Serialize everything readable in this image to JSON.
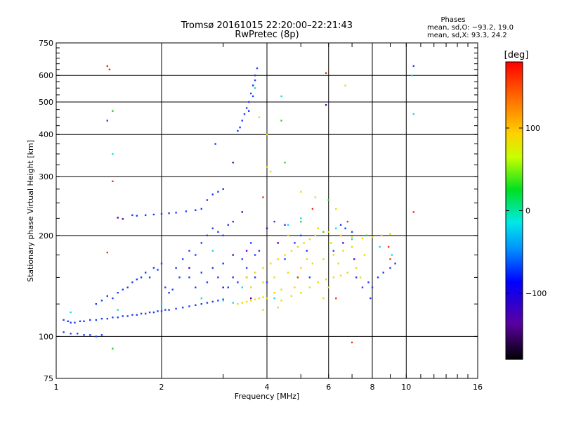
{
  "chart_data": {
    "type": "scatter",
    "title": "Tromsø 20161015 22:20:00–22:21:43",
    "subtitle": "RwPretec (8p)",
    "xlabel": "Frequency [MHz]",
    "ylabel": "Stationary phase Virtual Height [km]",
    "x_scale": "log",
    "y_scale": "log",
    "xlim": [
      1,
      16
    ],
    "ylim": [
      75,
      750
    ],
    "x_ticks": [
      1,
      2,
      4,
      6,
      8,
      10,
      16
    ],
    "x_tick_labels": [
      "1",
      "2",
      "4",
      "6",
      "8",
      "10",
      "16"
    ],
    "y_ticks": [
      75,
      100,
      200,
      300,
      400,
      500,
      600,
      750
    ],
    "y_tick_labels": [
      "75",
      "100",
      "200",
      "300",
      "400",
      "500",
      "600",
      "750"
    ],
    "grid": true,
    "stats": {
      "heading": "Phases",
      "line_o": "mean, sd,O: −93.2, 19.0",
      "line_x": "mean, sd,X:  93.3, 24.2"
    },
    "colorbar": {
      "label": "[deg]",
      "range": [
        -180,
        180
      ],
      "ticks": [
        100,
        0,
        -100
      ],
      "tick_labels": [
        "100",
        "0",
        "−100"
      ]
    },
    "series": [
      {
        "phase_deg": -93.2,
        "color": "#1b3cff",
        "points": [
          [
            1.05,
            112
          ],
          [
            1.08,
            111
          ],
          [
            1.1,
            110
          ],
          [
            1.13,
            110
          ],
          [
            1.17,
            111
          ],
          [
            1.2,
            111
          ],
          [
            1.25,
            112
          ],
          [
            1.3,
            112
          ],
          [
            1.35,
            113
          ],
          [
            1.4,
            113
          ],
          [
            1.45,
            114
          ],
          [
            1.5,
            114
          ],
          [
            1.55,
            115
          ],
          [
            1.6,
            115
          ],
          [
            1.65,
            116
          ],
          [
            1.7,
            116
          ],
          [
            1.75,
            117
          ],
          [
            1.8,
            117
          ],
          [
            1.85,
            118
          ],
          [
            1.9,
            118
          ],
          [
            1.95,
            119
          ],
          [
            2.0,
            119
          ],
          [
            2.05,
            120
          ],
          [
            2.1,
            120
          ],
          [
            2.2,
            121
          ],
          [
            2.3,
            122
          ],
          [
            2.4,
            123
          ],
          [
            2.5,
            124
          ],
          [
            2.6,
            125
          ],
          [
            2.7,
            126
          ],
          [
            2.8,
            127
          ],
          [
            2.9,
            128
          ],
          [
            3.0,
            129
          ],
          [
            1.05,
            103
          ],
          [
            1.1,
            102
          ],
          [
            1.15,
            102
          ],
          [
            1.2,
            101
          ],
          [
            1.25,
            101
          ],
          [
            1.3,
            100
          ],
          [
            1.35,
            101
          ],
          [
            1.3,
            125
          ],
          [
            1.35,
            128
          ],
          [
            1.4,
            132
          ],
          [
            1.45,
            130
          ],
          [
            1.5,
            135
          ],
          [
            1.55,
            138
          ],
          [
            1.6,
            140
          ],
          [
            1.65,
            145
          ],
          [
            1.7,
            148
          ],
          [
            1.75,
            150
          ],
          [
            1.8,
            155
          ],
          [
            1.85,
            150
          ],
          [
            1.9,
            160
          ],
          [
            1.95,
            158
          ],
          [
            2.0,
            165
          ],
          [
            2.05,
            140
          ],
          [
            2.1,
            135
          ],
          [
            2.15,
            138
          ],
          [
            2.2,
            160
          ],
          [
            2.25,
            150
          ],
          [
            2.3,
            170
          ],
          [
            2.4,
            180
          ],
          [
            2.5,
            175
          ],
          [
            2.6,
            190
          ],
          [
            2.7,
            200
          ],
          [
            2.8,
            210
          ],
          [
            2.9,
            205
          ],
          [
            3.0,
            200
          ],
          [
            3.1,
            215
          ],
          [
            3.2,
            220
          ],
          [
            2.4,
            150
          ],
          [
            2.6,
            155
          ],
          [
            2.8,
            160
          ],
          [
            3.0,
            165
          ],
          [
            3.2,
            150
          ],
          [
            3.4,
            170
          ],
          [
            3.5,
            160
          ],
          [
            3.6,
            190
          ],
          [
            3.7,
            175
          ],
          [
            3.8,
            180
          ],
          [
            2.5,
            140
          ],
          [
            2.7,
            145
          ],
          [
            2.9,
            150
          ],
          [
            3.1,
            140
          ],
          [
            3.3,
            145
          ],
          [
            3.5,
            150
          ],
          [
            3.3,
            410
          ],
          [
            3.35,
            420
          ],
          [
            3.4,
            440
          ],
          [
            3.45,
            460
          ],
          [
            3.5,
            480
          ],
          [
            3.55,
            500
          ],
          [
            3.6,
            530
          ],
          [
            3.65,
            560
          ],
          [
            3.7,
            600
          ],
          [
            3.75,
            630
          ],
          [
            3.55,
            470
          ],
          [
            3.65,
            520
          ],
          [
            3.7,
            580
          ],
          [
            1.65,
            230
          ],
          [
            1.7,
            229
          ],
          [
            1.8,
            230
          ],
          [
            1.9,
            231
          ],
          [
            2.0,
            232
          ],
          [
            2.1,
            233
          ],
          [
            2.2,
            234
          ],
          [
            2.35,
            236
          ],
          [
            2.5,
            238
          ],
          [
            2.6,
            240
          ],
          [
            2.7,
            255
          ],
          [
            2.8,
            265
          ],
          [
            2.9,
            270
          ],
          [
            3.0,
            275
          ],
          [
            2.85,
            375
          ],
          [
            3.7,
            150
          ],
          [
            4.0,
            145
          ],
          [
            4.5,
            170
          ],
          [
            4.8,
            190
          ],
          [
            5.0,
            200
          ],
          [
            4.2,
            220
          ],
          [
            4.5,
            215
          ],
          [
            5.2,
            180
          ],
          [
            6.5,
            215
          ],
          [
            6.7,
            210
          ],
          [
            7.0,
            205
          ],
          [
            7.2,
            150
          ],
          [
            7.5,
            140
          ],
          [
            7.8,
            145
          ],
          [
            8.0,
            140
          ],
          [
            8.3,
            150
          ],
          [
            8.6,
            155
          ],
          [
            9.0,
            160
          ],
          [
            9.3,
            165
          ],
          [
            1.4,
            440
          ],
          [
            10.5,
            640
          ],
          [
            5.3,
            150
          ],
          [
            6.2,
            180
          ],
          [
            7.9,
            130
          ]
        ]
      },
      {
        "phase_deg": 93.3,
        "color": "#f0d800",
        "points": [
          [
            3.3,
            125
          ],
          [
            3.4,
            126
          ],
          [
            3.5,
            127
          ],
          [
            3.6,
            128
          ],
          [
            3.7,
            129
          ],
          [
            3.8,
            130
          ],
          [
            3.9,
            131
          ],
          [
            4.0,
            130
          ],
          [
            4.2,
            135
          ],
          [
            4.4,
            138
          ],
          [
            3.5,
            150
          ],
          [
            3.7,
            155
          ],
          [
            3.9,
            160
          ],
          [
            4.1,
            165
          ],
          [
            4.3,
            170
          ],
          [
            4.5,
            175
          ],
          [
            4.7,
            180
          ],
          [
            4.9,
            185
          ],
          [
            5.1,
            190
          ],
          [
            5.3,
            195
          ],
          [
            3.6,
            140
          ],
          [
            3.9,
            145
          ],
          [
            4.2,
            150
          ],
          [
            4.6,
            155
          ],
          [
            5.0,
            160
          ],
          [
            5.4,
            165
          ],
          [
            5.8,
            170
          ],
          [
            6.2,
            175
          ],
          [
            6.6,
            180
          ],
          [
            7.0,
            185
          ],
          [
            4.4,
            128
          ],
          [
            4.7,
            132
          ],
          [
            5.0,
            135
          ],
          [
            5.3,
            140
          ],
          [
            5.6,
            145
          ],
          [
            5.9,
            148
          ],
          [
            6.2,
            150
          ],
          [
            6.5,
            152
          ],
          [
            6.8,
            155
          ],
          [
            7.2,
            160
          ],
          [
            5.5,
            200
          ],
          [
            6.0,
            205
          ],
          [
            6.5,
            200
          ],
          [
            7.0,
            198
          ],
          [
            7.5,
            196
          ],
          [
            8.0,
            198
          ],
          [
            8.5,
            200
          ],
          [
            9.0,
            202
          ],
          [
            4.0,
            320
          ],
          [
            4.1,
            310
          ],
          [
            3.9,
            120
          ],
          [
            4.3,
            122
          ],
          [
            5.8,
            130
          ],
          [
            6.0,
            140
          ],
          [
            6.4,
            165
          ],
          [
            7.4,
            150
          ],
          [
            7.6,
            175
          ],
          [
            5.0,
            270
          ],
          [
            5.5,
            260
          ],
          [
            6.3,
            240
          ],
          [
            4.8,
            140
          ],
          [
            5.2,
            170
          ],
          [
            5.6,
            210
          ],
          [
            6.1,
            190
          ],
          [
            4.6,
            200
          ],
          [
            3.8,
            450
          ],
          [
            4.0,
            400
          ],
          [
            6.7,
            560
          ]
        ]
      },
      {
        "phase_deg": 25,
        "color": "#18d8e0",
        "points": [
          [
            1.1,
            118
          ],
          [
            1.5,
            120
          ],
          [
            2.0,
            125
          ],
          [
            2.6,
            130
          ],
          [
            3.0,
            128
          ],
          [
            3.2,
            126
          ],
          [
            3.4,
            140
          ],
          [
            4.2,
            130
          ],
          [
            4.6,
            215
          ],
          [
            5.0,
            225
          ],
          [
            6.3,
            210
          ],
          [
            7.0,
            195
          ],
          [
            8.4,
            185
          ],
          [
            9.1,
            175
          ],
          [
            10.4,
            600
          ],
          [
            10.5,
            460
          ],
          [
            1.45,
            350
          ],
          [
            3.7,
            550
          ],
          [
            4.4,
            520
          ],
          [
            2.8,
            180
          ]
        ]
      },
      {
        "phase_deg": 0,
        "color": "#30d030",
        "points": [
          [
            1.45,
            470
          ],
          [
            1.45,
            92
          ],
          [
            4.5,
            330
          ],
          [
            5.0,
            220
          ],
          [
            6.0,
            255
          ],
          [
            7.7,
            200
          ],
          [
            4.4,
            440
          ],
          [
            5.8,
            205
          ]
        ]
      },
      {
        "phase_deg": 150,
        "color": "#f03010",
        "points": [
          [
            1.4,
            640
          ],
          [
            1.42,
            625
          ],
          [
            1.45,
            290
          ],
          [
            1.4,
            178
          ],
          [
            5.9,
            610
          ],
          [
            6.8,
            220
          ],
          [
            8.9,
            185
          ],
          [
            9.0,
            170
          ],
          [
            5.4,
            240
          ],
          [
            7.0,
            96
          ],
          [
            3.9,
            260
          ],
          [
            4.9,
            150
          ],
          [
            10.5,
            235
          ],
          [
            6.3,
            130
          ]
        ]
      },
      {
        "phase_deg": -150,
        "color": "#5a00b4",
        "points": [
          [
            1.5,
            226
          ],
          [
            1.55,
            224
          ],
          [
            2.4,
            160
          ],
          [
            3.0,
            140
          ],
          [
            3.2,
            175
          ],
          [
            3.5,
            180
          ],
          [
            3.6,
            130
          ],
          [
            4.3,
            190
          ],
          [
            5.9,
            490
          ],
          [
            3.4,
            235
          ],
          [
            4.0,
            210
          ],
          [
            3.2,
            330
          ],
          [
            6.6,
            190
          ],
          [
            7.1,
            170
          ]
        ]
      }
    ]
  }
}
